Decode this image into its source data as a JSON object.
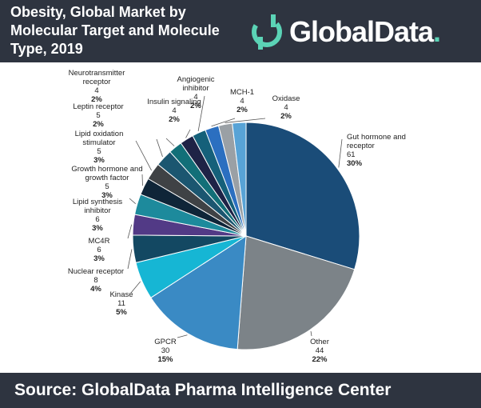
{
  "header": {
    "title": "Obesity, Global Market by Molecular Target and Molecule Type, 2019",
    "logo_text": "GlobalData",
    "logo_dot": "."
  },
  "footer": {
    "source": "Source:  GlobalData Pharma Intelligence Center"
  },
  "colors": {
    "header_bg": "#2e3440",
    "logo_accent": "#5bd3b6"
  },
  "chart_data": {
    "type": "pie",
    "title": "Obesity, Global Market by Molecular Target and Molecule Type, 2019",
    "legend": "none",
    "slices": [
      {
        "label": "Gut hormone and receptor",
        "value": 61,
        "percent": "30%",
        "color": "#1a4c78"
      },
      {
        "label": "Other",
        "value": 44,
        "percent": "22%",
        "color": "#7c8388"
      },
      {
        "label": "GPCR",
        "value": 30,
        "percent": "15%",
        "color": "#3a8ac4"
      },
      {
        "label": "Kinase",
        "value": 11,
        "percent": "5%",
        "color": "#16b6d4"
      },
      {
        "label": "Nuclear receptor",
        "value": 8,
        "percent": "4%",
        "color": "#134862"
      },
      {
        "label": "MC4R",
        "value": 6,
        "percent": "3%",
        "color": "#523a86"
      },
      {
        "label": "Lipid synthesis inhibitor",
        "value": 6,
        "percent": "3%",
        "color": "#1d8a9c"
      },
      {
        "label": "Growth hormone and growth factor",
        "value": 5,
        "percent": "3%",
        "color": "#0f2538"
      },
      {
        "label": "Lipid oxidation stimulator",
        "value": 5,
        "percent": "3%",
        "color": "#3f4245"
      },
      {
        "label": "Leptin receptor",
        "value": 5,
        "percent": "2%",
        "color": "#1b5670"
      },
      {
        "label": "Neurotransmitter receptor",
        "value": 4,
        "percent": "2%",
        "color": "#126f78"
      },
      {
        "label": "Insulin signaling",
        "value": 4,
        "percent": "2%",
        "color": "#1e2346"
      },
      {
        "label": "Angiogenic inhibitor",
        "value": 4,
        "percent": "2%",
        "color": "#15607a"
      },
      {
        "label": "MCH-1",
        "value": 4,
        "percent": "2%",
        "color": "#2b6fc0"
      },
      {
        "label": "Oxidase",
        "value": 4,
        "percent": "2%",
        "color": "#9aa0a5"
      },
      {
        "label": "",
        "value": 4,
        "percent": "",
        "color": "#58a3d6"
      }
    ]
  }
}
